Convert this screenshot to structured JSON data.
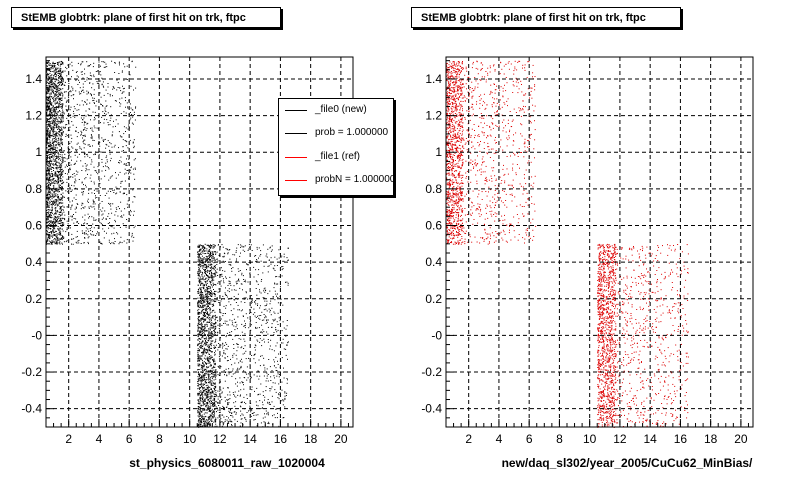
{
  "footer_stamp": "",
  "chart_data": [
    {
      "type": "scatter",
      "title": "StEMB globtrk: plane of first hit on trk, ftpc",
      "xlabel": "st_physics_6080011_raw_1020004",
      "ylabel": "",
      "xlim": [
        0.5,
        20.8
      ],
      "ylim": [
        -0.5,
        1.52
      ],
      "xticks": [
        2,
        4,
        6,
        8,
        10,
        12,
        14,
        16,
        18,
        20
      ],
      "ytick_values": [
        -0.4,
        -0.2,
        0,
        0.2,
        0.4,
        0.6,
        0.8,
        1,
        1.2,
        1.4
      ],
      "ytick_labels": [
        "-0.4",
        "-0.2",
        "-0",
        "0.2",
        "0.4",
        "0.6",
        "0.8",
        "1",
        "1.2",
        "1.4"
      ],
      "grid": true,
      "series": [
        {
          "name": "_file0 (new)",
          "color": "#000000",
          "clusters": [
            {
              "x_range": [
                0.5,
                6.4
              ],
              "y_range": [
                0.5,
                1.5
              ],
              "dense_x": [
                0.5,
                1.6
              ],
              "count": 2600
            },
            {
              "x_range": [
                10.5,
                16.5
              ],
              "y_range": [
                -0.5,
                0.5
              ],
              "dense_x": [
                10.5,
                11.7
              ],
              "count": 2600
            }
          ]
        }
      ],
      "legend": {
        "position": "top-right",
        "entries": [
          {
            "label": "_file0 (new)",
            "color": "#000000"
          },
          {
            "label": "prob = 1.000000",
            "color": "#000000"
          },
          {
            "label": "_file1 (ref)",
            "color": "#ff0000"
          },
          {
            "label": "probN = 1.000000",
            "color": "#ff0000"
          }
        ]
      }
    },
    {
      "type": "scatter",
      "title": "StEMB globtrk: plane of first hit on trk, ftpc",
      "xlabel": "new/daq_sl302/year_2005/CuCu62_MinBias/",
      "ylabel": "",
      "xlim": [
        0.5,
        20.8
      ],
      "ylim": [
        -0.5,
        1.52
      ],
      "xticks": [
        2,
        4,
        6,
        8,
        10,
        12,
        14,
        16,
        18,
        20
      ],
      "ytick_values": [
        -0.4,
        -0.2,
        0,
        0.2,
        0.4,
        0.6,
        0.8,
        1,
        1.2,
        1.4
      ],
      "ytick_labels": [
        "-0.4",
        "-0.2",
        "-0",
        "0.2",
        "0.4",
        "0.6",
        "0.8",
        "1",
        "1.2",
        "1.4"
      ],
      "grid": true,
      "series": [
        {
          "name": "_file1 (ref)",
          "color": "#dd0000",
          "clusters": [
            {
              "x_range": [
                0.5,
                6.4
              ],
              "y_range": [
                0.5,
                1.5
              ],
              "dense_x": [
                0.5,
                1.6
              ],
              "count": 1900
            },
            {
              "x_range": [
                10.5,
                16.5
              ],
              "y_range": [
                -0.5,
                0.5
              ],
              "dense_x": [
                10.5,
                11.7
              ],
              "count": 1900
            }
          ]
        }
      ]
    }
  ]
}
